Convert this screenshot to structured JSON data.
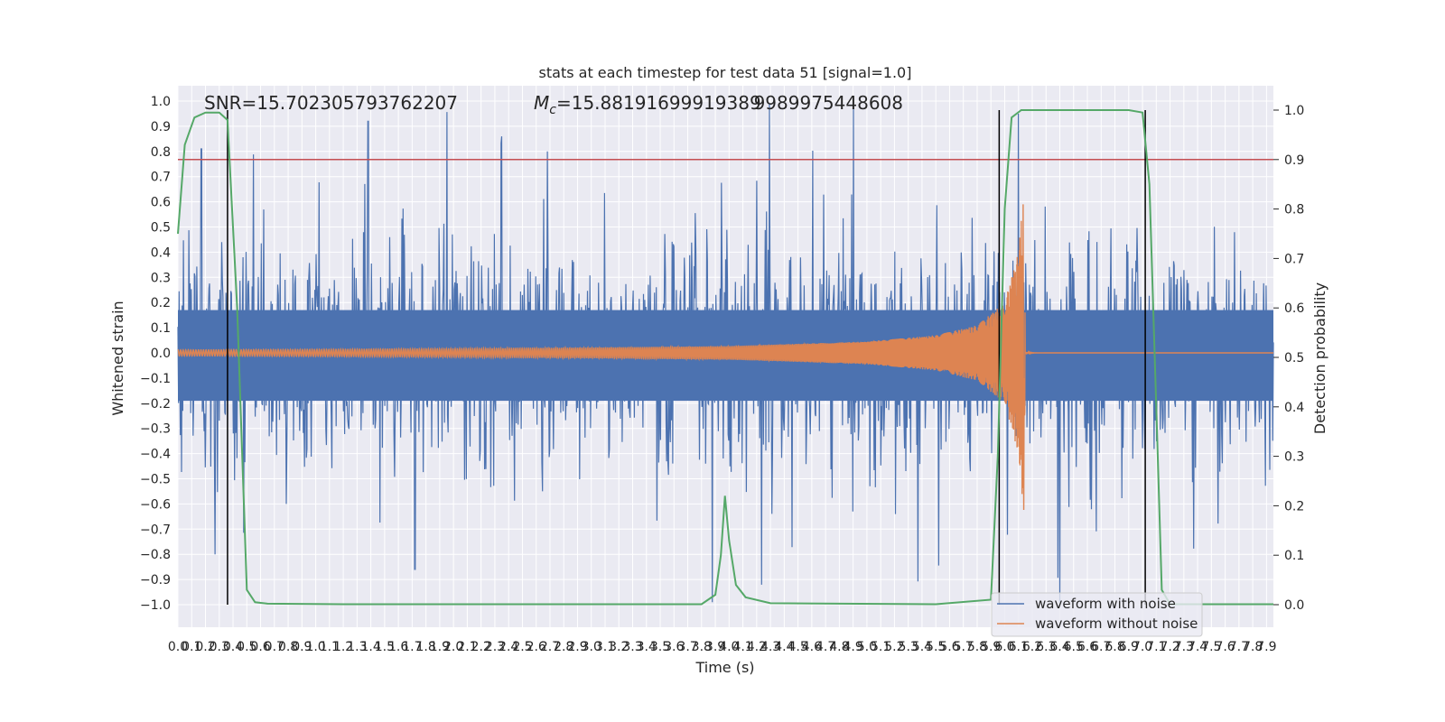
{
  "colors": {
    "background": "#eaeaf2",
    "grid": "#ffffff",
    "noisy": "#4c72b0",
    "clean": "#dd8452",
    "probability": "#55a868",
    "threshold": "#c44e52",
    "markers": "#000000"
  },
  "chart_data": {
    "type": "line",
    "title": "stats at each timestep for test data 51 [signal=1.0]",
    "xlabel": "Time (s)",
    "ylabel": "Whitened strain",
    "ylabel_right": "Detection probability",
    "xlim": [
      0.0,
      7.95
    ],
    "ylim": [
      -1.1,
      1.05
    ],
    "ylim_right": [
      -0.05,
      1.03
    ],
    "grid": true,
    "legend_position": "lower-right",
    "x_ticks": [
      "0.0",
      "0.1",
      "0.2",
      "0.3",
      "0.4",
      "0.5",
      "0.6",
      "0.7",
      "0.8",
      "0.9",
      "1.0",
      "1.1",
      "1.2",
      "1.3",
      "1.4",
      "1.5",
      "1.6",
      "1.7",
      "1.8",
      "1.9",
      "2.0",
      "2.1",
      "2.2",
      "2.3",
      "2.4",
      "2.5",
      "2.6",
      "2.7",
      "2.8",
      "2.9",
      "3.0",
      "3.1",
      "3.2",
      "3.3",
      "3.4",
      "3.5",
      "3.6",
      "3.7",
      "3.8",
      "3.9",
      "4.0",
      "4.1",
      "4.2",
      "4.3",
      "4.4",
      "4.5",
      "4.6",
      "4.7",
      "4.8",
      "4.9",
      "5.0",
      "5.1",
      "5.2",
      "5.3",
      "5.4",
      "5.5",
      "5.6",
      "5.7",
      "5.8",
      "5.9",
      "6.0",
      "6.1",
      "6.2",
      "6.3",
      "6.4",
      "6.5",
      "6.6",
      "6.7",
      "6.8",
      "6.9",
      "7.0",
      "7.1",
      "7.2",
      "7.3",
      "7.4",
      "7.5",
      "7.6",
      "7.7",
      "7.8",
      "7.9"
    ],
    "y_ticks": [
      "1.0",
      "0.9",
      "0.8",
      "0.7",
      "0.6",
      "0.5",
      "0.4",
      "0.3",
      "0.2",
      "0.1",
      "0.0",
      "−0.1",
      "−0.2",
      "−0.3",
      "−0.4",
      "−0.5",
      "−0.6",
      "−0.7",
      "−0.8",
      "−0.9",
      "−1.0"
    ],
    "y_ticks_right": [
      "1.0",
      "0.9",
      "0.8",
      "0.7",
      "0.6",
      "0.5",
      "0.4",
      "0.3",
      "0.2",
      "0.1",
      "0.0"
    ],
    "annotations": {
      "snr": "SNR=15.702305793762207",
      "mc_prefix": "M",
      "mc_sub": "c",
      "mc_value": "=15.88191699919389",
      "mc_overlap": "9989975448608"
    },
    "threshold": 0.9,
    "event_markers_x": [
      0.36,
      5.96,
      7.02
    ],
    "chirp_merger_time": 6.15,
    "series": [
      {
        "name": "waveform with noise",
        "axis": "left",
        "amplitude_range": [
          -1.0,
          1.0
        ],
        "notable_peaks": [
          [
            0.17,
            0.81
          ],
          [
            1.38,
            0.92
          ],
          [
            2.35,
            0.86
          ],
          [
            6.1,
            0.95
          ],
          [
            0.27,
            -0.8
          ],
          [
            1.72,
            -0.86
          ],
          [
            6.4,
            -0.99
          ]
        ]
      },
      {
        "name": "waveform without noise",
        "axis": "left",
        "envelope": [
          [
            0.0,
            0.012
          ],
          [
            1.0,
            0.014
          ],
          [
            2.0,
            0.017
          ],
          [
            3.0,
            0.021
          ],
          [
            4.0,
            0.027
          ],
          [
            5.0,
            0.045
          ],
          [
            5.5,
            0.07
          ],
          [
            5.8,
            0.11
          ],
          [
            6.0,
            0.2
          ],
          [
            6.1,
            0.4
          ],
          [
            6.14,
            0.65
          ],
          [
            6.15,
            0.0
          ],
          [
            7.95,
            0.0
          ]
        ]
      },
      {
        "name": "detection probability",
        "axis": "right",
        "points": [
          [
            0.0,
            0.75
          ],
          [
            0.05,
            0.93
          ],
          [
            0.12,
            0.985
          ],
          [
            0.2,
            0.995
          ],
          [
            0.3,
            0.995
          ],
          [
            0.36,
            0.98
          ],
          [
            0.43,
            0.6
          ],
          [
            0.5,
            0.03
          ],
          [
            0.56,
            0.005
          ],
          [
            0.65,
            0.002
          ],
          [
            1.2,
            0.001
          ],
          [
            3.8,
            0.001
          ],
          [
            3.9,
            0.02
          ],
          [
            3.94,
            0.1
          ],
          [
            3.97,
            0.22
          ],
          [
            4.0,
            0.13
          ],
          [
            4.05,
            0.04
          ],
          [
            4.12,
            0.015
          ],
          [
            4.3,
            0.003
          ],
          [
            5.5,
            0.001
          ],
          [
            5.9,
            0.01
          ],
          [
            5.95,
            0.3
          ],
          [
            6.0,
            0.8
          ],
          [
            6.05,
            0.985
          ],
          [
            6.12,
            1.0
          ],
          [
            6.9,
            1.0
          ],
          [
            7.0,
            0.995
          ],
          [
            7.05,
            0.85
          ],
          [
            7.1,
            0.4
          ],
          [
            7.14,
            0.03
          ],
          [
            7.2,
            0.001
          ],
          [
            7.95,
            0.001
          ]
        ]
      }
    ]
  }
}
